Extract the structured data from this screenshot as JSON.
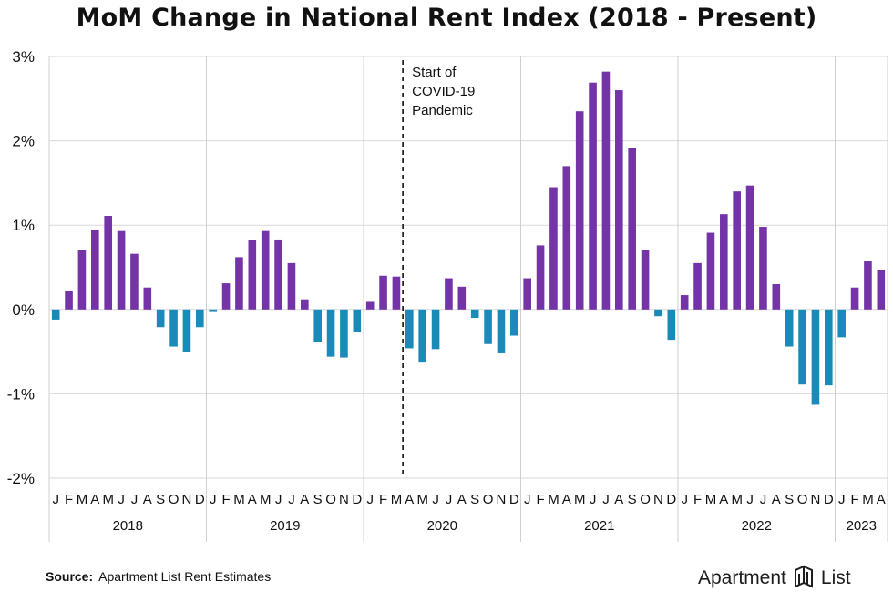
{
  "chart_data": {
    "type": "bar",
    "title": "MoM Change in National Rent Index (2018 - Present)",
    "ylim": [
      -2,
      3
    ],
    "yticks": [
      3,
      2,
      1,
      0,
      -1,
      -2
    ],
    "ytick_labels": [
      "3%",
      "2%",
      "1%",
      "0%",
      "-1%",
      "-2%"
    ],
    "month_labels": [
      "J",
      "F",
      "M",
      "A",
      "M",
      "J",
      "J",
      "A",
      "S",
      "O",
      "N",
      "D"
    ],
    "years": [
      {
        "label": "2018",
        "values": [
          -0.12,
          0.22,
          0.71,
          0.94,
          1.11,
          0.93,
          0.66,
          0.26,
          -0.21,
          -0.44,
          -0.5,
          -0.21
        ]
      },
      {
        "label": "2019",
        "values": [
          -0.03,
          0.31,
          0.62,
          0.82,
          0.93,
          0.83,
          0.55,
          0.12,
          -0.38,
          -0.56,
          -0.57,
          -0.27
        ]
      },
      {
        "label": "2020",
        "values": [
          0.09,
          0.4,
          0.39,
          -0.46,
          -0.63,
          -0.47,
          0.37,
          0.27,
          -0.1,
          -0.41,
          -0.52,
          -0.31
        ]
      },
      {
        "label": "2021",
        "values": [
          0.37,
          0.76,
          1.45,
          1.7,
          2.35,
          2.69,
          2.82,
          2.6,
          1.91,
          0.71,
          -0.08,
          -0.36
        ]
      },
      {
        "label": "2022",
        "values": [
          0.17,
          0.55,
          0.91,
          1.13,
          1.4,
          1.47,
          0.98,
          0.3,
          -0.44,
          -0.89,
          -1.13,
          -0.9
        ]
      },
      {
        "label": "2023",
        "values": [
          -0.33,
          0.26,
          0.57,
          0.47
        ]
      }
    ],
    "colors": {
      "positive": "#7434a8",
      "negative": "#1a8ab8"
    },
    "annotation": {
      "lines": [
        "Start of",
        "COVID-19",
        "Pandemic"
      ],
      "after_month_index": 26
    }
  },
  "source": {
    "label": "Source:",
    "text": "Apartment List Rent Estimates"
  },
  "logo": {
    "text_left": "Apartment",
    "text_right": "List"
  }
}
